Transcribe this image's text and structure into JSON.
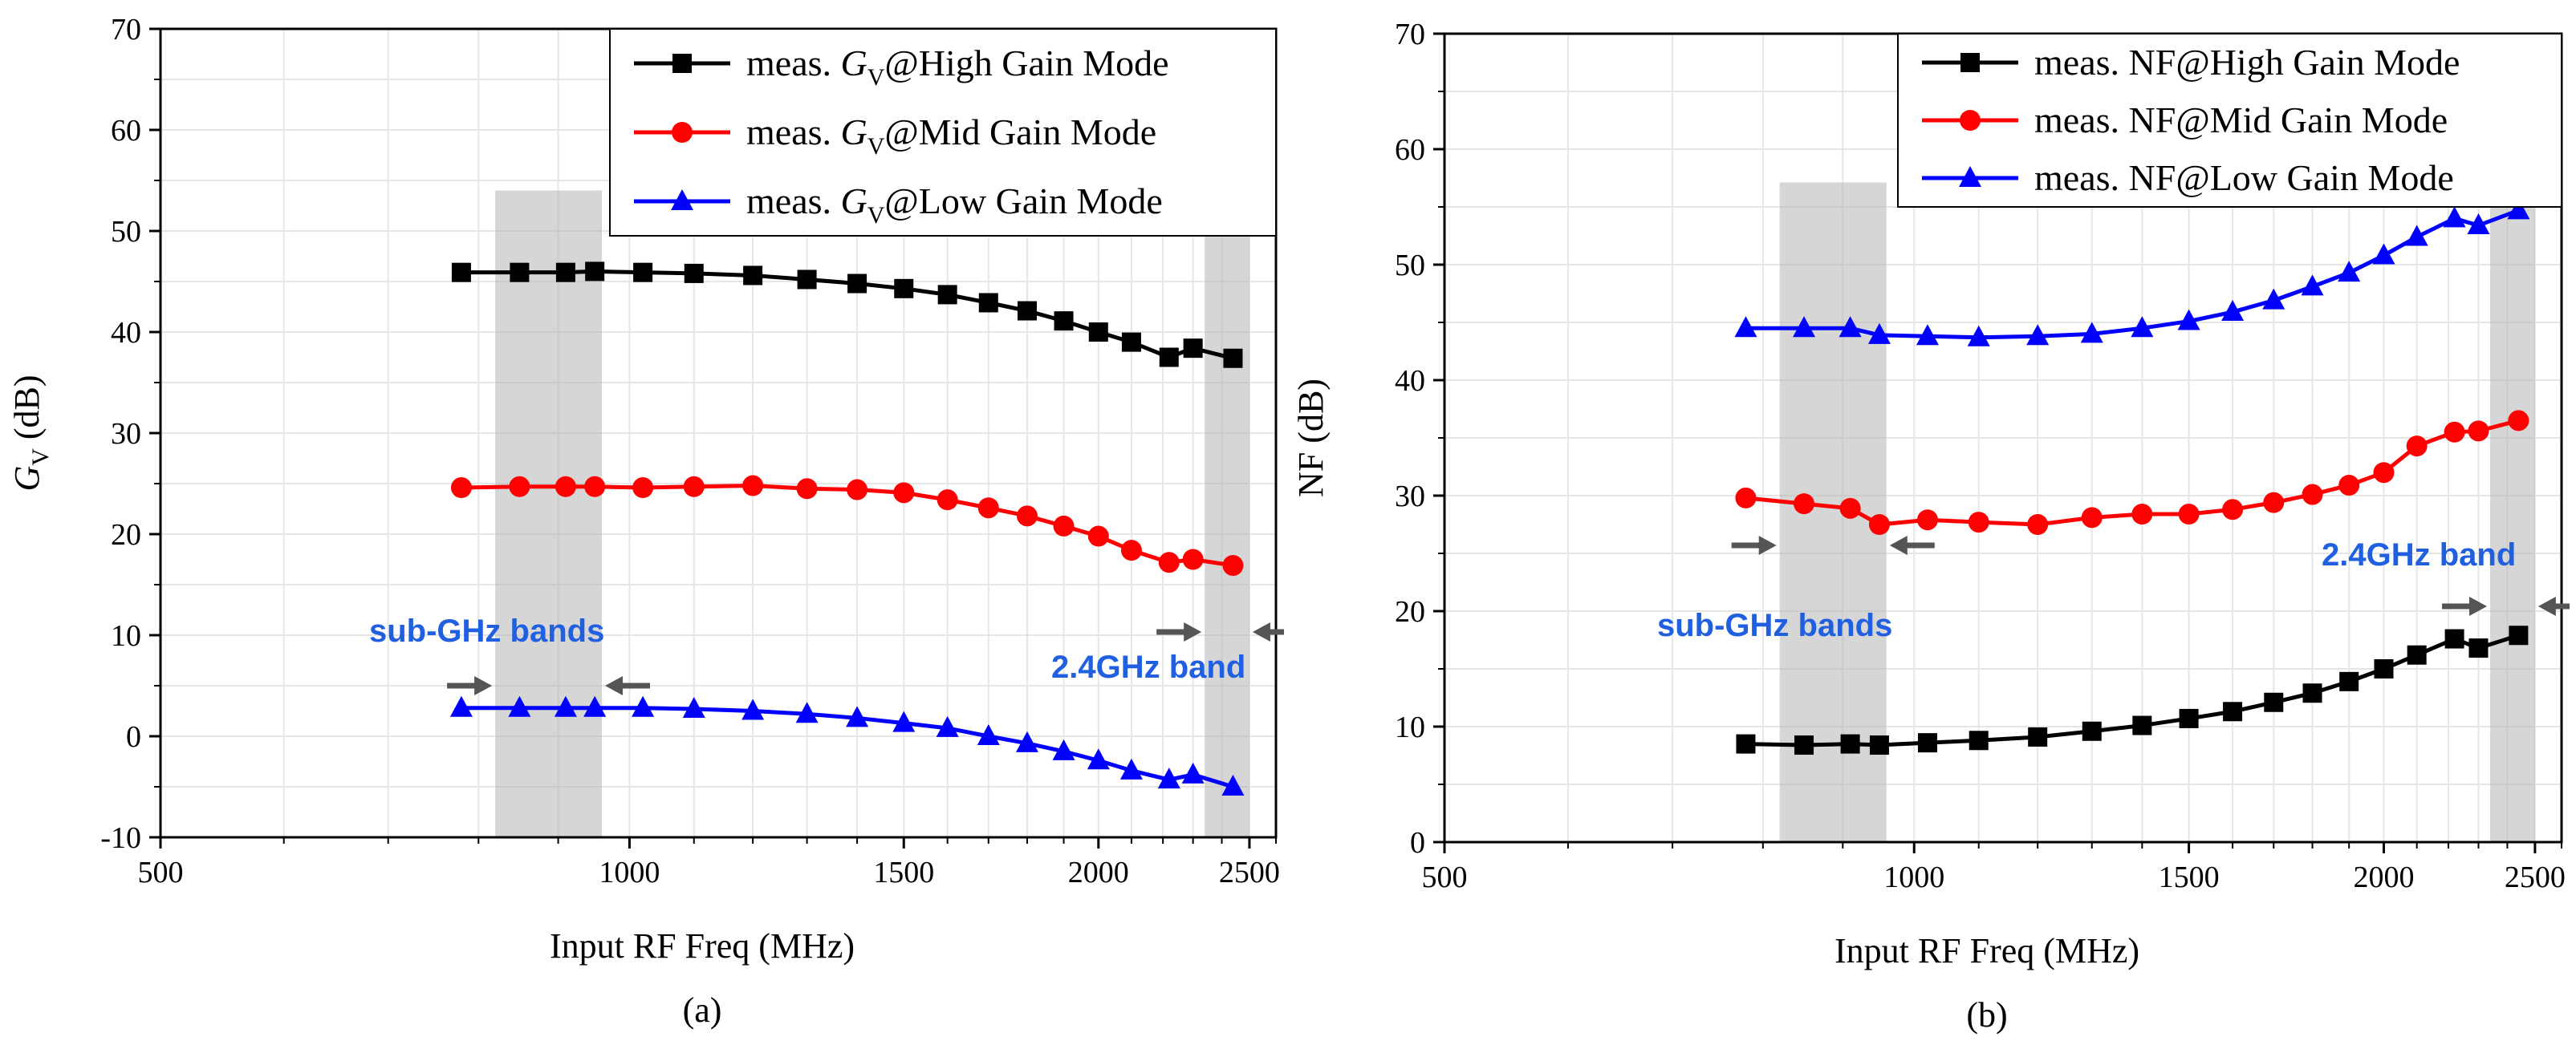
{
  "chart_data": [
    {
      "type": "line",
      "panel": "a",
      "caption": "(a)",
      "xlabel": "Input RF Freq (MHz)",
      "ylabel_main": "G",
      "ylabel_sub": "V",
      "ylabel_rest": " (dB)",
      "xscale": "log",
      "xlim": [
        500,
        2600
      ],
      "ylim": [
        -10,
        70
      ],
      "xticks": [
        500,
        1000,
        1500,
        2000,
        2500
      ],
      "yticks": [
        -10,
        0,
        10,
        20,
        30,
        40,
        50,
        60,
        70
      ],
      "legend_position": "top-right",
      "x": [
        780,
        850,
        910,
        950,
        1020,
        1100,
        1200,
        1300,
        1400,
        1500,
        1600,
        1700,
        1800,
        1900,
        2000,
        2100,
        2220,
        2300,
        2440
      ],
      "series": [
        {
          "name": "High Gain Mode",
          "legend_prefix": "meas. ",
          "legend_main": "G",
          "legend_sub": "V",
          "legend_suffix": "@High Gain Mode",
          "color": "#000000",
          "marker": "square",
          "values": [
            45.9,
            45.9,
            45.9,
            46.0,
            45.9,
            45.8,
            45.6,
            45.2,
            44.8,
            44.3,
            43.7,
            42.9,
            42.1,
            41.1,
            40.0,
            39.0,
            37.5,
            38.4,
            37.4
          ]
        },
        {
          "name": "Mid Gain Mode",
          "legend_prefix": "meas. ",
          "legend_main": "G",
          "legend_sub": "V",
          "legend_suffix": "@Mid Gain Mode",
          "color": "#ff0000",
          "marker": "circle",
          "values": [
            24.6,
            24.7,
            24.7,
            24.7,
            24.6,
            24.7,
            24.8,
            24.5,
            24.4,
            24.1,
            23.4,
            22.6,
            21.8,
            20.8,
            19.8,
            18.4,
            17.2,
            17.5,
            16.9
          ]
        },
        {
          "name": "Low Gain Mode",
          "legend_prefix": "meas. ",
          "legend_main": "G",
          "legend_sub": "V",
          "legend_suffix": "@Low Gain Mode",
          "color": "#0000ff",
          "marker": "triangle",
          "values": [
            2.8,
            2.8,
            2.8,
            2.8,
            2.8,
            2.7,
            2.5,
            2.2,
            1.8,
            1.3,
            0.8,
            0.0,
            -0.7,
            -1.5,
            -2.4,
            -3.4,
            -4.3,
            -3.8,
            -5.0
          ]
        }
      ],
      "shaded_bands": [
        {
          "from": 820,
          "to": 960
        },
        {
          "from": 2340,
          "to": 2500
        }
      ],
      "annotations": [
        {
          "text": "sub-GHz bands",
          "color": "#1f5fe0"
        },
        {
          "text": "2.4GHz band",
          "color": "#1f5fe0"
        }
      ]
    },
    {
      "type": "line",
      "panel": "b",
      "caption": "(b)",
      "xlabel": "Input RF Freq (MHz)",
      "ylabel_main": "NF",
      "ylabel_sub": "",
      "ylabel_rest": " (dB)",
      "xscale": "log",
      "xlim": [
        500,
        2600
      ],
      "ylim": [
        0,
        70
      ],
      "xticks": [
        500,
        1000,
        1500,
        2000,
        2500
      ],
      "yticks": [
        0,
        10,
        20,
        30,
        40,
        50,
        60,
        70
      ],
      "legend_position": "top-right",
      "x": [
        780,
        850,
        910,
        950,
        1020,
        1100,
        1200,
        1300,
        1400,
        1500,
        1600,
        1700,
        1800,
        1900,
        2000,
        2100,
        2220,
        2300,
        2440
      ],
      "series": [
        {
          "name": "High Gain Mode",
          "legend_prefix": "meas. ",
          "legend_main": "NF",
          "legend_sub": "",
          "legend_suffix": "@High Gain Mode",
          "color": "#000000",
          "marker": "square",
          "values": [
            8.5,
            8.4,
            8.5,
            8.4,
            8.6,
            8.8,
            9.1,
            9.6,
            10.1,
            10.7,
            11.3,
            12.1,
            12.9,
            13.9,
            15.0,
            16.2,
            17.6,
            16.8,
            17.9
          ]
        },
        {
          "name": "Mid Gain Mode",
          "legend_prefix": "meas. ",
          "legend_main": "NF",
          "legend_sub": "",
          "legend_suffix": "@Mid Gain Mode",
          "color": "#ff0000",
          "marker": "circle",
          "values": [
            29.8,
            29.3,
            28.9,
            27.5,
            27.9,
            27.7,
            27.5,
            28.1,
            28.4,
            28.4,
            28.8,
            29.4,
            30.1,
            30.9,
            32.0,
            34.3,
            35.5,
            35.6,
            36.5
          ]
        },
        {
          "name": "Low Gain Mode",
          "legend_prefix": "meas. ",
          "legend_main": "NF",
          "legend_sub": "",
          "legend_suffix": "@Low Gain Mode",
          "color": "#0000ff",
          "marker": "triangle",
          "values": [
            44.5,
            44.5,
            44.5,
            43.9,
            43.8,
            43.7,
            43.8,
            44.0,
            44.5,
            45.1,
            45.9,
            46.9,
            48.1,
            49.3,
            50.8,
            52.4,
            54.0,
            53.4,
            54.7
          ]
        }
      ],
      "shaded_bands": [
        {
          "from": 820,
          "to": 960
        },
        {
          "from": 2340,
          "to": 2500
        }
      ],
      "annotations": [
        {
          "text": "sub-GHz bands",
          "color": "#1f5fe0"
        },
        {
          "text": "2.4GHz band",
          "color": "#1f5fe0"
        }
      ]
    }
  ]
}
